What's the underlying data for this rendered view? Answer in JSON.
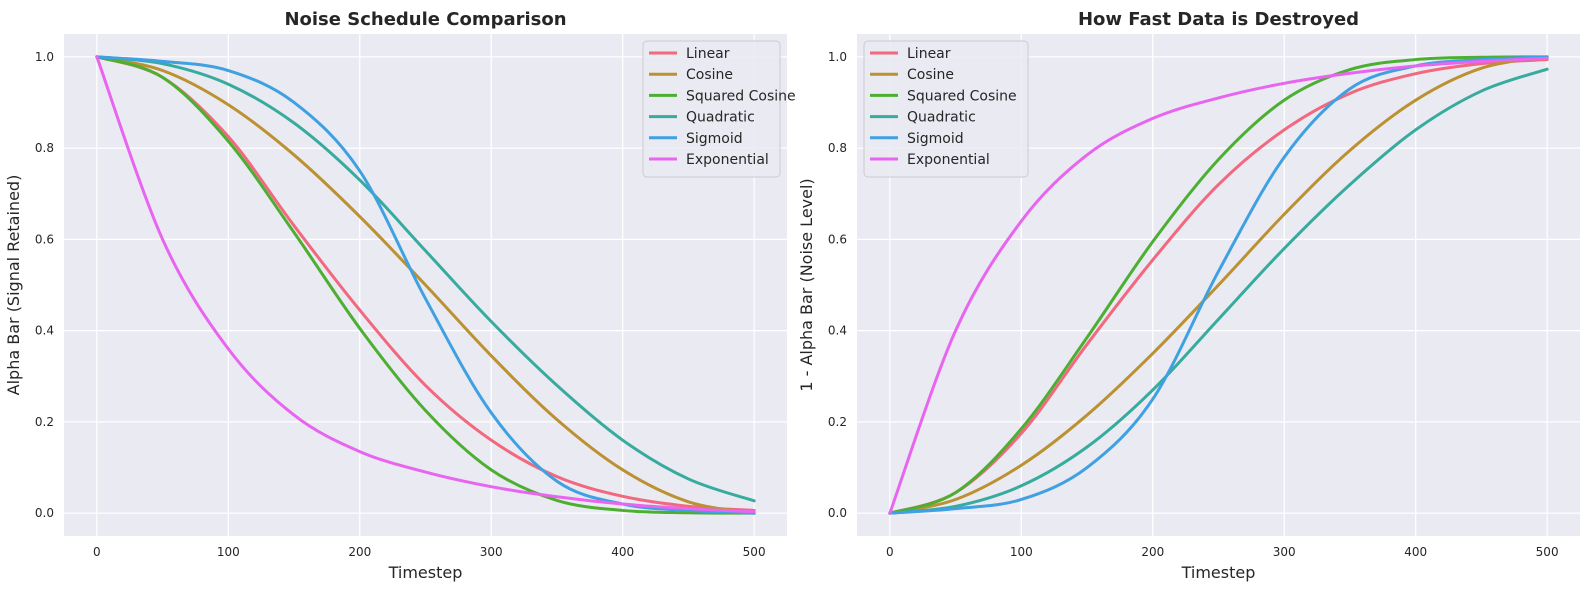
{
  "chart_data": [
    {
      "type": "line",
      "title": "Noise Schedule Comparison",
      "xlabel": "Timestep",
      "ylabel": "Alpha Bar (Signal Retained)",
      "xlim": [
        -25,
        525
      ],
      "ylim": [
        -0.05,
        1.05
      ],
      "xticks": [
        0,
        100,
        200,
        300,
        400,
        500
      ],
      "yticks": [
        0.0,
        0.2,
        0.4,
        0.6,
        0.8,
        1.0
      ],
      "xtick_labels": [
        "0",
        "100",
        "200",
        "300",
        "400",
        "500"
      ],
      "ytick_labels": [
        "0.0",
        "0.2",
        "0.4",
        "0.6",
        "0.8",
        "1.0"
      ],
      "grid": true,
      "legend_position": "top-right",
      "x": [
        0,
        50,
        100,
        150,
        200,
        250,
        300,
        350,
        400,
        450,
        500
      ],
      "series": [
        {
          "name": "Linear",
          "color": "#f2687f",
          "values": [
            1.0,
            0.955,
            0.825,
            0.63,
            0.445,
            0.28,
            0.16,
            0.08,
            0.037,
            0.015,
            0.006
          ]
        },
        {
          "name": "Cosine",
          "color": "#bb9132",
          "values": [
            1.0,
            0.97,
            0.895,
            0.785,
            0.65,
            0.5,
            0.345,
            0.205,
            0.095,
            0.025,
            0.0
          ]
        },
        {
          "name": "Squared Cosine",
          "color": "#4daf32",
          "values": [
            1.0,
            0.955,
            0.815,
            0.615,
            0.405,
            0.225,
            0.095,
            0.028,
            0.006,
            0.001,
            0.0
          ]
        },
        {
          "name": "Quadratic",
          "color": "#36ab9e",
          "values": [
            1.0,
            0.985,
            0.94,
            0.855,
            0.73,
            0.575,
            0.42,
            0.28,
            0.16,
            0.075,
            0.027
          ]
        },
        {
          "name": "Sigmoid",
          "color": "#3fa0e2",
          "values": [
            1.0,
            0.99,
            0.97,
            0.9,
            0.75,
            0.47,
            0.22,
            0.07,
            0.02,
            0.006,
            0.0
          ]
        },
        {
          "name": "Exponential",
          "color": "#e865ef",
          "values": [
            1.0,
            0.6,
            0.36,
            0.215,
            0.135,
            0.09,
            0.058,
            0.036,
            0.02,
            0.01,
            0.003
          ]
        }
      ]
    },
    {
      "type": "line",
      "title": "How Fast Data is Destroyed",
      "xlabel": "Timestep",
      "ylabel": "1 - Alpha Bar (Noise Level)",
      "xlim": [
        -25,
        525
      ],
      "ylim": [
        -0.05,
        1.05
      ],
      "xticks": [
        0,
        100,
        200,
        300,
        400,
        500
      ],
      "yticks": [
        0.0,
        0.2,
        0.4,
        0.6,
        0.8,
        1.0
      ],
      "xtick_labels": [
        "0",
        "100",
        "200",
        "300",
        "400",
        "500"
      ],
      "ytick_labels": [
        "0.0",
        "0.2",
        "0.4",
        "0.6",
        "0.8",
        "1.0"
      ],
      "grid": true,
      "legend_position": "top-left",
      "x": [
        0,
        50,
        100,
        150,
        200,
        250,
        300,
        350,
        400,
        450,
        500
      ],
      "series": [
        {
          "name": "Linear",
          "color": "#f2687f",
          "values": [
            0.0,
            0.045,
            0.175,
            0.37,
            0.555,
            0.72,
            0.84,
            0.92,
            0.963,
            0.985,
            0.994
          ]
        },
        {
          "name": "Cosine",
          "color": "#bb9132",
          "values": [
            0.0,
            0.03,
            0.105,
            0.215,
            0.35,
            0.5,
            0.655,
            0.795,
            0.905,
            0.975,
            1.0
          ]
        },
        {
          "name": "Squared Cosine",
          "color": "#4daf32",
          "values": [
            0.0,
            0.045,
            0.185,
            0.385,
            0.595,
            0.775,
            0.905,
            0.972,
            0.994,
            0.999,
            1.0
          ]
        },
        {
          "name": "Quadratic",
          "color": "#36ab9e",
          "values": [
            0.0,
            0.015,
            0.06,
            0.145,
            0.27,
            0.425,
            0.58,
            0.72,
            0.84,
            0.925,
            0.973
          ]
        },
        {
          "name": "Sigmoid",
          "color": "#3fa0e2",
          "values": [
            0.0,
            0.01,
            0.03,
            0.1,
            0.25,
            0.53,
            0.78,
            0.93,
            0.98,
            0.994,
            1.0
          ]
        },
        {
          "name": "Exponential",
          "color": "#e865ef",
          "values": [
            0.0,
            0.4,
            0.64,
            0.785,
            0.865,
            0.91,
            0.942,
            0.964,
            0.98,
            0.99,
            0.997
          ]
        }
      ]
    }
  ]
}
